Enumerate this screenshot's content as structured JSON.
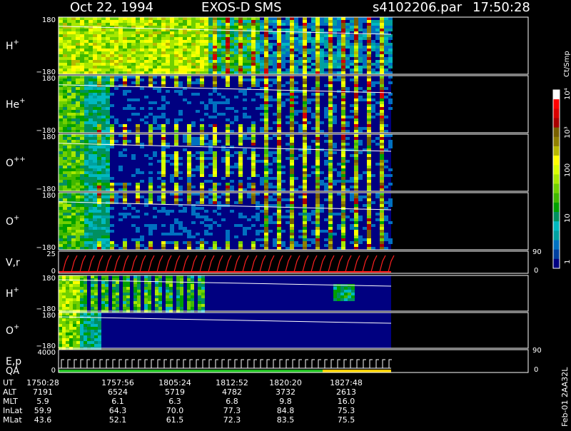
{
  "header": {
    "date": "Oct 22, 1994",
    "instrument": "EXOS-D SMS",
    "file": "s4102206.par",
    "time": "17:50:28"
  },
  "colorbar": {
    "label": "Ct/Smp",
    "ticks": [
      "10⁴",
      "10³",
      "100",
      "10",
      "1"
    ],
    "colors": [
      "#ffffff",
      "#ff0000",
      "#d80000",
      "#a80000",
      "#786000",
      "#908000",
      "#b8b800",
      "#ffff00",
      "#d8ff00",
      "#a8e800",
      "#70d000",
      "#40b800",
      "#00a000",
      "#009060",
      "#00b8c0",
      "#00a0a0",
      "#0070c0",
      "#0040a0",
      "#000080"
    ]
  },
  "panels": [
    {
      "id": "h-plus",
      "label_main": "H",
      "label_sup": "+",
      "ytop": "180",
      "ybot": "−180"
    },
    {
      "id": "he-plus",
      "label_main": "He",
      "label_sup": "+",
      "ytop": "180",
      "ybot": "−180"
    },
    {
      "id": "o-plusplus",
      "label_main": "O",
      "label_sup": "++",
      "ytop": "180",
      "ybot": "−180"
    },
    {
      "id": "o-plus",
      "label_main": "O",
      "label_sup": "+",
      "ytop": "180",
      "ybot": "−180"
    },
    {
      "id": "vr",
      "label_main": "V,r",
      "label_sup": "",
      "ytop": "25",
      "ybot": "0",
      "right_top": "90",
      "right_bot": "0"
    },
    {
      "id": "h-plus-2",
      "label_main": "H",
      "label_sup": "+",
      "ytop": "180",
      "ybot": "−180"
    },
    {
      "id": "o-plus-2",
      "label_main": "O",
      "label_sup": "+",
      "ytop": "180",
      "ybot": "−180"
    },
    {
      "id": "ep",
      "label_main": "E,p",
      "label_sub": "QA",
      "ytop": "4000",
      "ybot": "0",
      "right_top": "90",
      "right_bot": "0"
    }
  ],
  "side_label": "Feb-01 2AA32L",
  "ephemeris": {
    "row_labels": [
      "UT",
      "ALT",
      "MLT",
      "InLat",
      "MLat"
    ],
    "columns": [
      [
        "1750:28",
        "7191",
        "5.9",
        "59.9",
        "43.6"
      ],
      [
        "1757:56",
        "6524",
        "6.1",
        "64.3",
        "52.1"
      ],
      [
        "1805:24",
        "5719",
        "6.3",
        "70.0",
        "61.5"
      ],
      [
        "1812:52",
        "4782",
        "6.8",
        "77.3",
        "72.3"
      ],
      [
        "1820:20",
        "3732",
        "9.8",
        "84.8",
        "83.5"
      ],
      [
        "1827:48",
        "2613",
        "16.0",
        "75.3",
        "75.5"
      ]
    ]
  },
  "chart_data": {
    "type": "heatmap",
    "title": "Oct 22, 1994   EXOS-D SMS",
    "x_ticks": [
      "1750:28",
      "1757:56",
      "1805:24",
      "1812:52",
      "1820:20",
      "1827:48"
    ],
    "colorbar_label": "Ct/Smp",
    "colorbar_ticks": [
      "1",
      "10",
      "100",
      "10³",
      "10⁴"
    ],
    "panels": [
      "H+",
      "He+",
      "O++",
      "O+",
      "V,r",
      "H+",
      "O+",
      "E,p QA"
    ]
  }
}
